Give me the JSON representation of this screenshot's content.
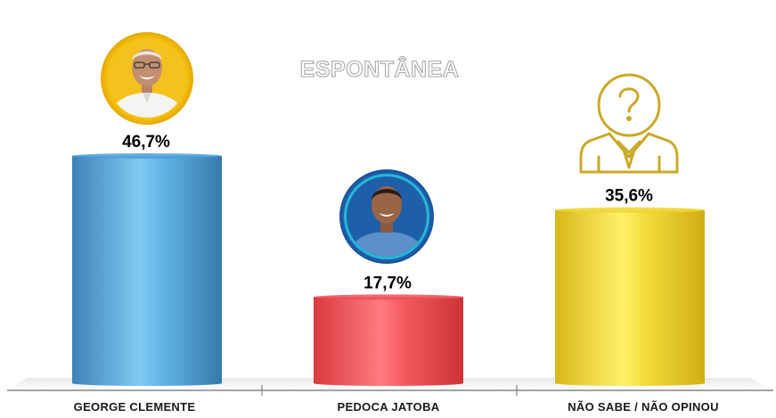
{
  "chart_data": {
    "type": "bar",
    "title": "ESPONTÂNEA",
    "categories": [
      "GEORGE CLEMENTE",
      "PEDOCA JATOBA",
      "NÃO SABE / NÃO OPINOU"
    ],
    "values": [
      46.7,
      17.7,
      35.6
    ],
    "value_labels": [
      "46,7%",
      "17,7%",
      "35,6%"
    ],
    "unit": "%",
    "colors": [
      "#4a9fd8",
      "#ef4f55",
      "#f0d530"
    ],
    "ylim": [
      0,
      50
    ],
    "grid": false,
    "legend": "none"
  },
  "icons": [
    "candidate-photo-george-clemente",
    "candidate-photo-pedoca-jatoba",
    "question-person-icon"
  ]
}
